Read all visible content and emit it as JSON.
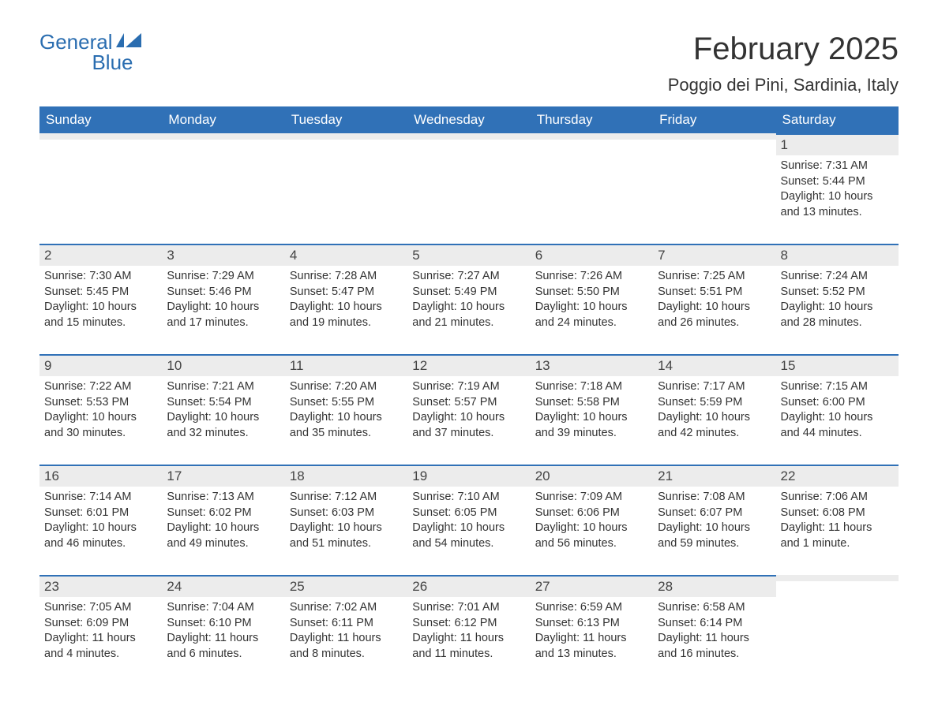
{
  "logo": {
    "text1": "General",
    "text2": "Blue",
    "brand_color": "#2a6db0"
  },
  "title": "February 2025",
  "location": "Poggio dei Pini, Sardinia, Italy",
  "colors": {
    "header_bg": "#3071b7",
    "header_text": "#ffffff",
    "daynum_bg": "#ececec",
    "border": "#3071b7",
    "text": "#333333",
    "background": "#ffffff"
  },
  "typography": {
    "title_fontsize": 40,
    "location_fontsize": 22,
    "header_fontsize": 17,
    "body_fontsize": 14.5
  },
  "day_headers": [
    "Sunday",
    "Monday",
    "Tuesday",
    "Wednesday",
    "Thursday",
    "Friday",
    "Saturday"
  ],
  "weeks": [
    [
      {
        "n": "",
        "sunrise": "",
        "sunset": "",
        "daylight": ""
      },
      {
        "n": "",
        "sunrise": "",
        "sunset": "",
        "daylight": ""
      },
      {
        "n": "",
        "sunrise": "",
        "sunset": "",
        "daylight": ""
      },
      {
        "n": "",
        "sunrise": "",
        "sunset": "",
        "daylight": ""
      },
      {
        "n": "",
        "sunrise": "",
        "sunset": "",
        "daylight": ""
      },
      {
        "n": "",
        "sunrise": "",
        "sunset": "",
        "daylight": ""
      },
      {
        "n": "1",
        "sunrise": "Sunrise: 7:31 AM",
        "sunset": "Sunset: 5:44 PM",
        "daylight": "Daylight: 10 hours and 13 minutes."
      }
    ],
    [
      {
        "n": "2",
        "sunrise": "Sunrise: 7:30 AM",
        "sunset": "Sunset: 5:45 PM",
        "daylight": "Daylight: 10 hours and 15 minutes."
      },
      {
        "n": "3",
        "sunrise": "Sunrise: 7:29 AM",
        "sunset": "Sunset: 5:46 PM",
        "daylight": "Daylight: 10 hours and 17 minutes."
      },
      {
        "n": "4",
        "sunrise": "Sunrise: 7:28 AM",
        "sunset": "Sunset: 5:47 PM",
        "daylight": "Daylight: 10 hours and 19 minutes."
      },
      {
        "n": "5",
        "sunrise": "Sunrise: 7:27 AM",
        "sunset": "Sunset: 5:49 PM",
        "daylight": "Daylight: 10 hours and 21 minutes."
      },
      {
        "n": "6",
        "sunrise": "Sunrise: 7:26 AM",
        "sunset": "Sunset: 5:50 PM",
        "daylight": "Daylight: 10 hours and 24 minutes."
      },
      {
        "n": "7",
        "sunrise": "Sunrise: 7:25 AM",
        "sunset": "Sunset: 5:51 PM",
        "daylight": "Daylight: 10 hours and 26 minutes."
      },
      {
        "n": "8",
        "sunrise": "Sunrise: 7:24 AM",
        "sunset": "Sunset: 5:52 PM",
        "daylight": "Daylight: 10 hours and 28 minutes."
      }
    ],
    [
      {
        "n": "9",
        "sunrise": "Sunrise: 7:22 AM",
        "sunset": "Sunset: 5:53 PM",
        "daylight": "Daylight: 10 hours and 30 minutes."
      },
      {
        "n": "10",
        "sunrise": "Sunrise: 7:21 AM",
        "sunset": "Sunset: 5:54 PM",
        "daylight": "Daylight: 10 hours and 32 minutes."
      },
      {
        "n": "11",
        "sunrise": "Sunrise: 7:20 AM",
        "sunset": "Sunset: 5:55 PM",
        "daylight": "Daylight: 10 hours and 35 minutes."
      },
      {
        "n": "12",
        "sunrise": "Sunrise: 7:19 AM",
        "sunset": "Sunset: 5:57 PM",
        "daylight": "Daylight: 10 hours and 37 minutes."
      },
      {
        "n": "13",
        "sunrise": "Sunrise: 7:18 AM",
        "sunset": "Sunset: 5:58 PM",
        "daylight": "Daylight: 10 hours and 39 minutes."
      },
      {
        "n": "14",
        "sunrise": "Sunrise: 7:17 AM",
        "sunset": "Sunset: 5:59 PM",
        "daylight": "Daylight: 10 hours and 42 minutes."
      },
      {
        "n": "15",
        "sunrise": "Sunrise: 7:15 AM",
        "sunset": "Sunset: 6:00 PM",
        "daylight": "Daylight: 10 hours and 44 minutes."
      }
    ],
    [
      {
        "n": "16",
        "sunrise": "Sunrise: 7:14 AM",
        "sunset": "Sunset: 6:01 PM",
        "daylight": "Daylight: 10 hours and 46 minutes."
      },
      {
        "n": "17",
        "sunrise": "Sunrise: 7:13 AM",
        "sunset": "Sunset: 6:02 PM",
        "daylight": "Daylight: 10 hours and 49 minutes."
      },
      {
        "n": "18",
        "sunrise": "Sunrise: 7:12 AM",
        "sunset": "Sunset: 6:03 PM",
        "daylight": "Daylight: 10 hours and 51 minutes."
      },
      {
        "n": "19",
        "sunrise": "Sunrise: 7:10 AM",
        "sunset": "Sunset: 6:05 PM",
        "daylight": "Daylight: 10 hours and 54 minutes."
      },
      {
        "n": "20",
        "sunrise": "Sunrise: 7:09 AM",
        "sunset": "Sunset: 6:06 PM",
        "daylight": "Daylight: 10 hours and 56 minutes."
      },
      {
        "n": "21",
        "sunrise": "Sunrise: 7:08 AM",
        "sunset": "Sunset: 6:07 PM",
        "daylight": "Daylight: 10 hours and 59 minutes."
      },
      {
        "n": "22",
        "sunrise": "Sunrise: 7:06 AM",
        "sunset": "Sunset: 6:08 PM",
        "daylight": "Daylight: 11 hours and 1 minute."
      }
    ],
    [
      {
        "n": "23",
        "sunrise": "Sunrise: 7:05 AM",
        "sunset": "Sunset: 6:09 PM",
        "daylight": "Daylight: 11 hours and 4 minutes."
      },
      {
        "n": "24",
        "sunrise": "Sunrise: 7:04 AM",
        "sunset": "Sunset: 6:10 PM",
        "daylight": "Daylight: 11 hours and 6 minutes."
      },
      {
        "n": "25",
        "sunrise": "Sunrise: 7:02 AM",
        "sunset": "Sunset: 6:11 PM",
        "daylight": "Daylight: 11 hours and 8 minutes."
      },
      {
        "n": "26",
        "sunrise": "Sunrise: 7:01 AM",
        "sunset": "Sunset: 6:12 PM",
        "daylight": "Daylight: 11 hours and 11 minutes."
      },
      {
        "n": "27",
        "sunrise": "Sunrise: 6:59 AM",
        "sunset": "Sunset: 6:13 PM",
        "daylight": "Daylight: 11 hours and 13 minutes."
      },
      {
        "n": "28",
        "sunrise": "Sunrise: 6:58 AM",
        "sunset": "Sunset: 6:14 PM",
        "daylight": "Daylight: 11 hours and 16 minutes."
      },
      {
        "n": "",
        "sunrise": "",
        "sunset": "",
        "daylight": ""
      }
    ]
  ]
}
